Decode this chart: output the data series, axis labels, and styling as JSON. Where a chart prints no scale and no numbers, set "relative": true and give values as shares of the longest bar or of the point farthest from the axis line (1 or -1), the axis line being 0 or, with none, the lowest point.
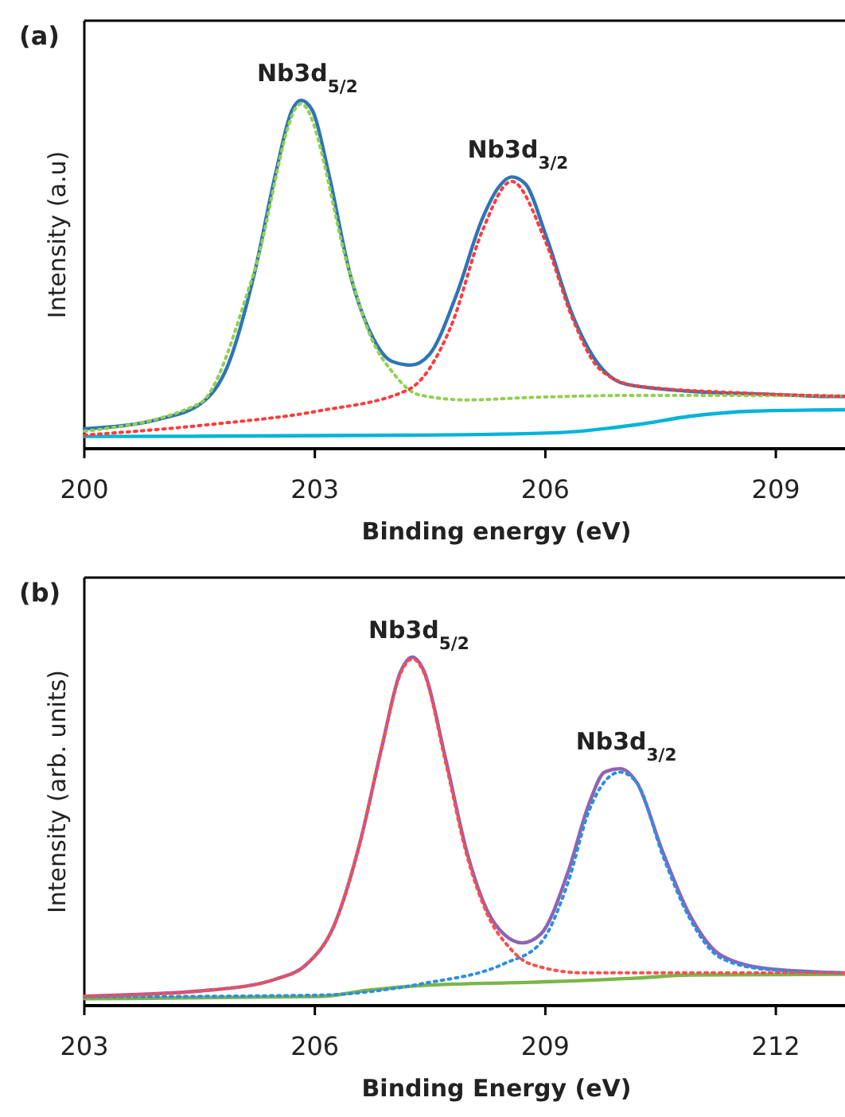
{
  "chart_data": [
    {
      "type": "line",
      "relative": true,
      "xlabel": "Binding energy (eV)",
      "ylabel": "Intensity (a.u)",
      "xlim": [
        200,
        209.9
      ],
      "xticks": [
        200,
        203,
        206,
        209
      ],
      "annotations": [
        "(a)",
        {
          "text": "Nb3d$_{5/2}$",
          "x": 202.82,
          "y": 1.0
        },
        {
          "text": "Nb3d$_{3/2}$",
          "x": 205.56,
          "y": 0.78
        }
      ],
      "series": [
        {
          "color": "#00b4d8",
          "line_style": "solid",
          "x": [
            200,
            204.42,
            206.15,
            207.19,
            207.88,
            208.71,
            209.9
          ],
          "values": [
            0.035,
            0.039,
            0.046,
            0.069,
            0.093,
            0.108,
            0.112
          ]
        },
        {
          "color": "#2e75b6",
          "line_style": "solid",
          "x": [
            200,
            200.97,
            201.52,
            201.87,
            202.21,
            202.49,
            202.7,
            202.82,
            202.97,
            203.18,
            203.46,
            203.73,
            204.01,
            204.25,
            204.49,
            204.84,
            205.18,
            205.39,
            205.56,
            205.74,
            206.01,
            206.36,
            206.7,
            207.05,
            207.88,
            208.91,
            209.73,
            209.9
          ],
          "values": [
            0.057,
            0.085,
            0.13,
            0.24,
            0.5,
            0.79,
            0.97,
            1.0,
            0.97,
            0.79,
            0.5,
            0.33,
            0.25,
            0.24,
            0.27,
            0.44,
            0.66,
            0.75,
            0.78,
            0.76,
            0.61,
            0.38,
            0.24,
            0.185,
            0.165,
            0.156,
            0.15,
            0.15
          ]
        },
        {
          "color": "#92d050",
          "line_style": "dotted",
          "x": [
            200,
            201.5,
            202.2,
            202.82,
            203.46,
            203.73,
            204.01,
            204.35,
            204.98,
            205.8,
            207.19,
            209.9
          ],
          "values": [
            0.05,
            0.13,
            0.5,
            0.99,
            0.5,
            0.32,
            0.22,
            0.155,
            0.14,
            0.147,
            0.153,
            0.152
          ]
        },
        {
          "color": "#ff3b3b",
          "line_style": "dotted",
          "x": [
            200,
            201.66,
            203.04,
            204.22,
            204.77,
            205.18,
            205.56,
            206.01,
            206.36,
            206.7,
            207.19,
            208.57,
            209.9
          ],
          "values": [
            0.039,
            0.07,
            0.108,
            0.17,
            0.35,
            0.625,
            0.767,
            0.59,
            0.37,
            0.23,
            0.18,
            0.16,
            0.15
          ]
        }
      ]
    },
    {
      "type": "line",
      "relative": true,
      "xlabel": "Binding Energy (eV)",
      "ylabel": "Intensity (arb. units)",
      "xlim": [
        203,
        212.9
      ],
      "xticks": [
        203,
        206,
        209,
        212
      ],
      "annotations": [
        "(b)",
        {
          "text": "Nb3d$_{5/2}$",
          "x": 207.27,
          "y": 1.0
        },
        {
          "text": "Nb3d$_{3/2}$",
          "x": 209.97,
          "y": 0.68
        }
      ],
      "series": [
        {
          "color": "#7ab648",
          "line_style": "solid",
          "x": [
            203,
            206.04,
            206.73,
            207.42,
            208.8,
            210.19,
            210.88,
            212.9
          ],
          "values": [
            0.02,
            0.026,
            0.045,
            0.058,
            0.067,
            0.079,
            0.088,
            0.09
          ]
        },
        {
          "color": "#8e63b4",
          "line_style": "solid",
          "x": [
            203,
            204.66,
            205.49,
            205.9,
            206.25,
            206.59,
            206.87,
            207.11,
            207.27,
            207.42,
            207.7,
            207.98,
            208.25,
            208.46,
            208.7,
            208.94,
            209.29,
            209.57,
            209.77,
            209.97,
            210.19,
            210.53,
            210.88,
            211.29,
            211.91,
            212.9
          ],
          "values": [
            0.027,
            0.045,
            0.076,
            0.12,
            0.23,
            0.47,
            0.74,
            0.955,
            1.0,
            0.96,
            0.71,
            0.44,
            0.27,
            0.205,
            0.18,
            0.205,
            0.38,
            0.58,
            0.67,
            0.68,
            0.64,
            0.44,
            0.26,
            0.144,
            0.106,
            0.094
          ]
        },
        {
          "color": "#2e8fe0",
          "line_style": "dotted",
          "x": [
            203,
            206.04,
            207.42,
            208.46,
            208.94,
            209.29,
            209.57,
            209.97,
            210.19,
            210.53,
            210.88,
            211.29,
            211.91,
            212.9
          ],
          "values": [
            0.025,
            0.03,
            0.064,
            0.12,
            0.18,
            0.35,
            0.56,
            0.67,
            0.64,
            0.43,
            0.25,
            0.136,
            0.103,
            0.094
          ]
        },
        {
          "color": "#ff4d4d",
          "line_style": "dotted",
          "x": [
            203,
            204.66,
            205.49,
            205.9,
            206.25,
            206.59,
            206.87,
            207.11,
            207.27,
            207.42,
            207.7,
            207.98,
            208.25,
            208.53,
            208.8,
            209.5,
            212.9
          ],
          "values": [
            0.027,
            0.045,
            0.076,
            0.12,
            0.23,
            0.47,
            0.74,
            0.95,
            0.995,
            0.955,
            0.7,
            0.43,
            0.26,
            0.167,
            0.12,
            0.094,
            0.094
          ]
        }
      ]
    }
  ]
}
